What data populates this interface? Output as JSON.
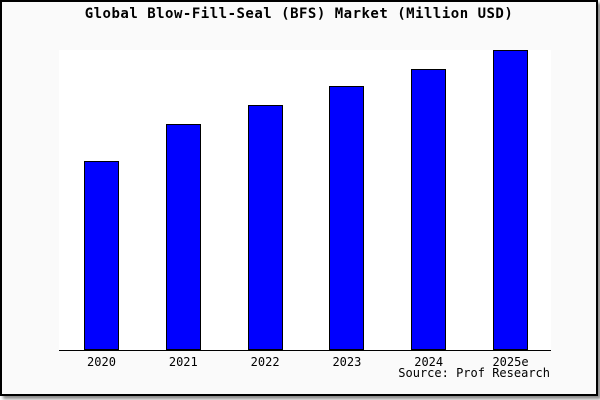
{
  "chart_data": {
    "type": "bar",
    "title": "Global Blow-Fill-Seal (BFS) Market (Million USD)",
    "categories": [
      "2020",
      "2021",
      "2022",
      "2023",
      "2024",
      "2025e"
    ],
    "values_pct_of_max": [
      63,
      75.3,
      81.7,
      88,
      93.7,
      100
    ],
    "xlabel": "",
    "ylabel": "",
    "y_axis": "unlabeled",
    "grid": false,
    "legend": "none",
    "bar_color": "#0000ff",
    "bar_border_color": "#000000",
    "plot_background": "#ffffff",
    "canvas_background": "#fafafa",
    "source": "Source: Prof Research"
  }
}
